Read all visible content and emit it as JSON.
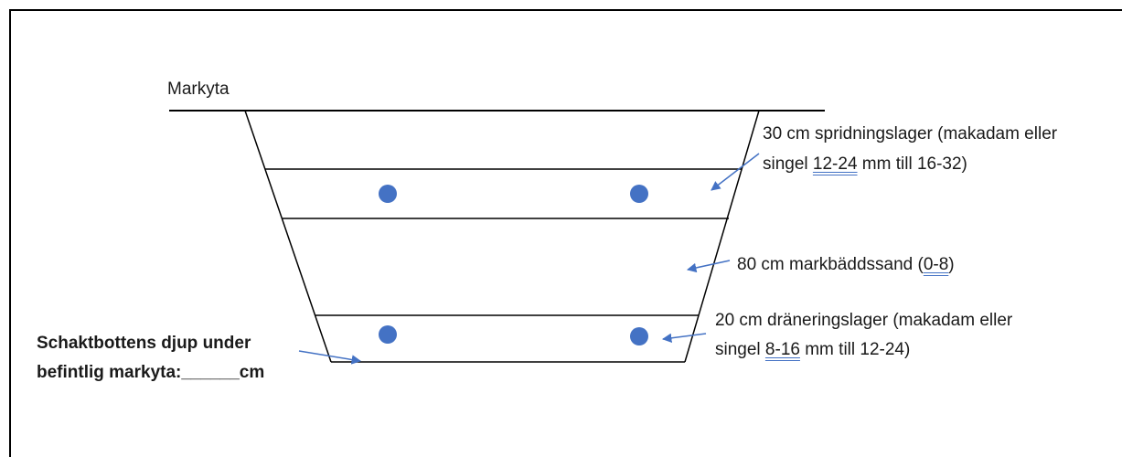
{
  "diagram": {
    "ground_label": "Markyta",
    "layers": [
      {
        "line1_pre": "30 cm spridningslager (makadam eller",
        "line2_pre": "singel ",
        "line2_underlined": "12-24",
        "line2_post": " mm till 16-32)"
      },
      {
        "line1_pre": "80 cm markbäddssand (",
        "line1_underlined": "0-8",
        "line1_post": ")"
      },
      {
        "line1_pre": "20 cm dräneringslager (makadam eller",
        "line2_pre": "singel ",
        "line2_underlined": "8-16",
        "line2_post": " mm till 12-24)"
      }
    ],
    "depth_label": {
      "line1": "Schaktbottens djup under",
      "line2": "befintlig markyta:______cm"
    },
    "colors": {
      "line": "#000000",
      "marker": "#4472c4",
      "arrow": "#4472c4",
      "text": "#1a1a1a"
    }
  }
}
